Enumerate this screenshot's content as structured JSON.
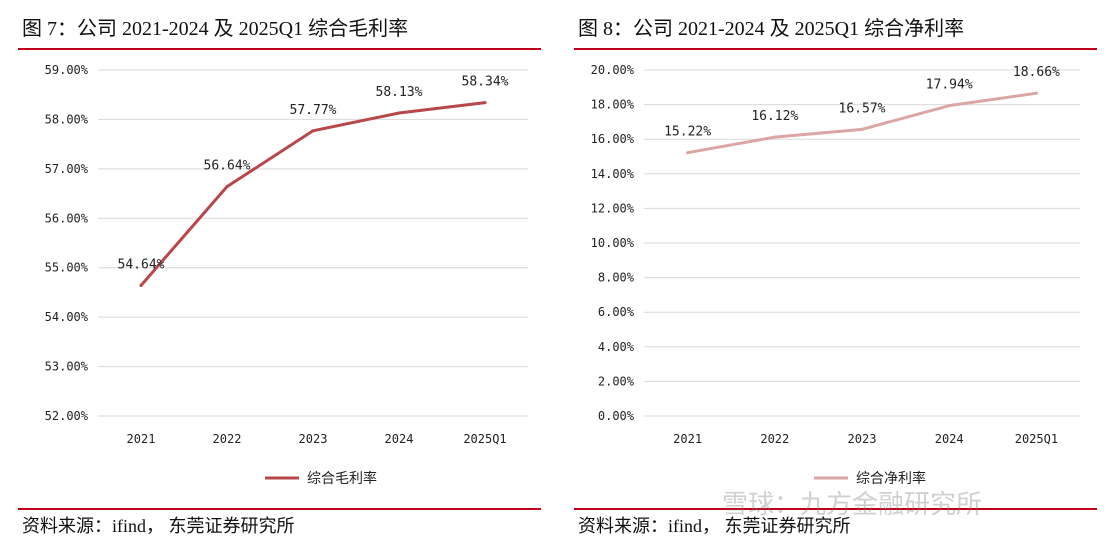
{
  "chart_data": [
    {
      "type": "line",
      "figure_title": "图 7：公司 2021-2024 及 2025Q1 综合毛利率",
      "categories": [
        "2021",
        "2022",
        "2023",
        "2024",
        "2025Q1"
      ],
      "series": [
        {
          "name": "综合毛利率",
          "values": [
            54.64,
            56.64,
            57.77,
            58.13,
            58.34
          ],
          "color": "#b8474a"
        }
      ],
      "data_labels": [
        "54.64%",
        "56.64%",
        "57.77%",
        "58.13%",
        "58.34%"
      ],
      "yticks": [
        "52.00%",
        "53.00%",
        "54.00%",
        "55.00%",
        "56.00%",
        "57.00%",
        "58.00%",
        "59.00%"
      ],
      "ylim": [
        52,
        59
      ],
      "grid": true,
      "legend_position": "bottom",
      "source": "资料来源：ifind， 东莞证券研究所"
    },
    {
      "type": "line",
      "figure_title": "图 8：公司 2021-2024 及 2025Q1 综合净利率",
      "categories": [
        "2021",
        "2022",
        "2023",
        "2024",
        "2025Q1"
      ],
      "series": [
        {
          "name": "综合净利率",
          "values": [
            15.22,
            16.12,
            16.57,
            17.94,
            18.66
          ],
          "color": "#dba6a3"
        }
      ],
      "data_labels": [
        "15.22%",
        "16.12%",
        "16.57%",
        "17.94%",
        "18.66%"
      ],
      "yticks": [
        "0.00%",
        "2.00%",
        "4.00%",
        "6.00%",
        "8.00%",
        "10.00%",
        "12.00%",
        "14.00%",
        "16.00%",
        "18.00%",
        "20.00%"
      ],
      "ylim": [
        0,
        20
      ],
      "grid": true,
      "legend_position": "bottom",
      "source": "资料来源：ifind， 东莞证券研究所"
    }
  ],
  "watermark": "雪球：九方金融研究所",
  "colors": {
    "rule": "#c0001b",
    "grid": "#d9d9d9"
  }
}
